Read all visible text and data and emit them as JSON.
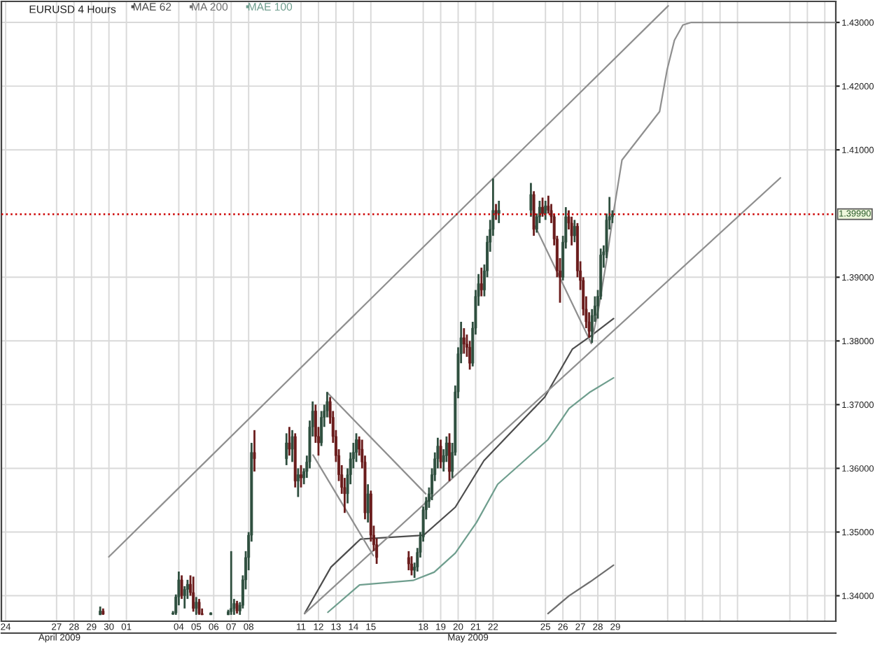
{
  "chart_data": {
    "type": "candlestick",
    "title": "EURUSD 4 Hours",
    "x": [
      "2009-04-30T00:00",
      "2009-04-30T04:00",
      "2009-05-04T04:00",
      "2009-05-04T08:00",
      "2009-05-04T12:00",
      "2009-05-04T16:00",
      "2009-05-04T20:00",
      "2009-05-05T00:00",
      "2009-05-05T04:00",
      "2009-05-05T08:00",
      "2009-05-05T12:00",
      "2009-05-05T16:00",
      "2009-05-05T20:00",
      "2009-05-06T08:00",
      "2009-05-07T08:00",
      "2009-05-07T12:00",
      "2009-05-07T16:00",
      "2009-05-07T20:00",
      "2009-05-08T00:00",
      "2009-05-08T04:00",
      "2009-05-08T08:00",
      "2009-05-08T12:00",
      "2009-05-08T16:00",
      "2009-05-08T20:00",
      "2009-05-10T16:00",
      "2009-05-10T20:00",
      "2009-05-11T00:00",
      "2009-05-11T04:00",
      "2009-05-11T08:00",
      "2009-05-11T12:00",
      "2009-05-11T16:00",
      "2009-05-11T20:00",
      "2009-05-12T00:00",
      "2009-05-12T04:00",
      "2009-05-12T08:00",
      "2009-05-12T12:00",
      "2009-05-12T16:00",
      "2009-05-12T20:00",
      "2009-05-13T00:00",
      "2009-05-13T04:00",
      "2009-05-13T08:00",
      "2009-05-13T12:00",
      "2009-05-13T16:00",
      "2009-05-13T20:00",
      "2009-05-14T00:00",
      "2009-05-14T04:00",
      "2009-05-14T08:00",
      "2009-05-14T12:00",
      "2009-05-14T16:00",
      "2009-05-14T20:00",
      "2009-05-15T00:00",
      "2009-05-15T04:00",
      "2009-05-15T08:00",
      "2009-05-15T12:00",
      "2009-05-15T16:00",
      "2009-05-15T20:00",
      "2009-05-17T16:00",
      "2009-05-17T20:00",
      "2009-05-18T00:00",
      "2009-05-18T04:00",
      "2009-05-18T08:00",
      "2009-05-18T12:00",
      "2009-05-18T16:00",
      "2009-05-18T20:00",
      "2009-05-19T00:00",
      "2009-05-19T04:00",
      "2009-05-19T08:00",
      "2009-05-19T12:00",
      "2009-05-19T16:00",
      "2009-05-19T20:00",
      "2009-05-20T00:00",
      "2009-05-20T04:00",
      "2009-05-20T08:00",
      "2009-05-20T12:00",
      "2009-05-20T16:00",
      "2009-05-20T20:00",
      "2009-05-21T00:00",
      "2009-05-21T04:00",
      "2009-05-21T08:00",
      "2009-05-21T12:00",
      "2009-05-21T16:00",
      "2009-05-21T20:00",
      "2009-05-22T00:00",
      "2009-05-22T04:00",
      "2009-05-22T08:00",
      "2009-05-22T12:00",
      "2009-05-22T16:00",
      "2009-05-22T20:00",
      "2009-05-24T16:00",
      "2009-05-24T20:00",
      "2009-05-25T00:00",
      "2009-05-25T04:00",
      "2009-05-25T08:00",
      "2009-05-25T12:00",
      "2009-05-25T16:00",
      "2009-05-25T20:00",
      "2009-05-26T00:00",
      "2009-05-26T04:00",
      "2009-05-26T08:00",
      "2009-05-26T12:00",
      "2009-05-26T16:00",
      "2009-05-26T20:00",
      "2009-05-27T00:00",
      "2009-05-27T04:00",
      "2009-05-27T08:00",
      "2009-05-27T12:00",
      "2009-05-27T16:00",
      "2009-05-27T20:00",
      "2009-05-28T00:00",
      "2009-05-28T04:00",
      "2009-05-28T08:00",
      "2009-05-28T12:00",
      "2009-05-28T16:00",
      "2009-05-28T20:00",
      "2009-05-29T00:00",
      "2009-05-29T04:00",
      "2009-05-29T08:00"
    ],
    "ohlc": [
      [
        1.337,
        1.3383,
        1.337,
        1.3376
      ],
      [
        1.3376,
        1.338,
        1.337,
        1.3371
      ],
      [
        1.3371,
        1.3376,
        1.337,
        1.3373
      ],
      [
        1.3373,
        1.3402,
        1.337,
        1.3398
      ],
      [
        1.3398,
        1.3438,
        1.3385,
        1.3425
      ],
      [
        1.3425,
        1.3432,
        1.3395,
        1.34
      ],
      [
        1.34,
        1.3415,
        1.338,
        1.341
      ],
      [
        1.341,
        1.3425,
        1.3395,
        1.3418
      ],
      [
        1.3418,
        1.3432,
        1.34,
        1.3405
      ],
      [
        1.3405,
        1.343,
        1.3375,
        1.338
      ],
      [
        1.338,
        1.3398,
        1.337,
        1.339
      ],
      [
        1.339,
        1.3395,
        1.337,
        1.3372
      ],
      [
        1.3372,
        1.338,
        1.337,
        1.337
      ],
      [
        1.337,
        1.3374,
        1.337,
        1.3373
      ],
      [
        1.337,
        1.3378,
        1.337,
        1.3375
      ],
      [
        1.3375,
        1.347,
        1.337,
        1.338
      ],
      [
        1.338,
        1.3395,
        1.337,
        1.3388
      ],
      [
        1.3388,
        1.3392,
        1.3372,
        1.3376
      ],
      [
        1.3376,
        1.339,
        1.337,
        1.3385
      ],
      [
        1.3385,
        1.3432,
        1.338,
        1.3425
      ],
      [
        1.3425,
        1.347,
        1.341,
        1.346
      ],
      [
        1.346,
        1.35,
        1.344,
        1.3495
      ],
      [
        1.3495,
        1.364,
        1.3485,
        1.3625
      ],
      [
        1.3625,
        1.366,
        1.3595,
        1.3615
      ],
      [
        1.3615,
        1.3655,
        1.3605,
        1.364
      ],
      [
        1.364,
        1.3665,
        1.362,
        1.363
      ],
      [
        1.363,
        1.366,
        1.361,
        1.365
      ],
      [
        1.365,
        1.3655,
        1.357,
        1.358
      ],
      [
        1.358,
        1.36,
        1.3555,
        1.359
      ],
      [
        1.359,
        1.3605,
        1.357,
        1.3585
      ],
      [
        1.3585,
        1.36,
        1.3575,
        1.3595
      ],
      [
        1.3595,
        1.362,
        1.3585,
        1.361
      ],
      [
        1.361,
        1.3675,
        1.36,
        1.3665
      ],
      [
        1.3665,
        1.3705,
        1.365,
        1.369
      ],
      [
        1.369,
        1.37,
        1.364,
        1.365
      ],
      [
        1.365,
        1.3665,
        1.362,
        1.364
      ],
      [
        1.364,
        1.369,
        1.3635,
        1.368
      ],
      [
        1.368,
        1.37,
        1.3665,
        1.369
      ],
      [
        1.369,
        1.372,
        1.368,
        1.3705
      ],
      [
        1.3705,
        1.3712,
        1.367,
        1.368
      ],
      [
        1.368,
        1.369,
        1.364,
        1.365
      ],
      [
        1.365,
        1.366,
        1.361,
        1.362
      ],
      [
        1.362,
        1.363,
        1.358,
        1.359
      ],
      [
        1.359,
        1.3605,
        1.356,
        1.357
      ],
      [
        1.357,
        1.3585,
        1.353,
        1.356
      ],
      [
        1.356,
        1.36,
        1.3545,
        1.359
      ],
      [
        1.359,
        1.3625,
        1.3575,
        1.3615
      ],
      [
        1.3615,
        1.364,
        1.36,
        1.3625
      ],
      [
        1.3625,
        1.3655,
        1.361,
        1.3645
      ],
      [
        1.3645,
        1.365,
        1.362,
        1.363
      ],
      [
        1.363,
        1.3645,
        1.36,
        1.361
      ],
      [
        1.361,
        1.362,
        1.352,
        1.353
      ],
      [
        1.353,
        1.3575,
        1.3515,
        1.356
      ],
      [
        1.356,
        1.3565,
        1.3485,
        1.3495
      ],
      [
        1.3495,
        1.351,
        1.347,
        1.348
      ],
      [
        1.348,
        1.349,
        1.345,
        1.346
      ],
      [
        1.346,
        1.347,
        1.344,
        1.345
      ],
      [
        1.345,
        1.3462,
        1.3432,
        1.344
      ],
      [
        1.344,
        1.3452,
        1.3428,
        1.3445
      ],
      [
        1.3445,
        1.3475,
        1.3438,
        1.3468
      ],
      [
        1.3468,
        1.35,
        1.346,
        1.3492
      ],
      [
        1.3492,
        1.354,
        1.3485,
        1.3535
      ],
      [
        1.3535,
        1.3555,
        1.352,
        1.3548
      ],
      [
        1.3548,
        1.357,
        1.3538,
        1.356
      ],
      [
        1.356,
        1.36,
        1.355,
        1.359
      ],
      [
        1.359,
        1.3625,
        1.358,
        1.3615
      ],
      [
        1.3615,
        1.3648,
        1.36,
        1.3635
      ],
      [
        1.3635,
        1.3645,
        1.36,
        1.361
      ],
      [
        1.361,
        1.363,
        1.3595,
        1.362
      ],
      [
        1.362,
        1.365,
        1.361,
        1.364
      ],
      [
        1.364,
        1.3655,
        1.358,
        1.3595
      ],
      [
        1.3595,
        1.364,
        1.3585,
        1.3625
      ],
      [
        1.3625,
        1.373,
        1.362,
        1.372
      ],
      [
        1.372,
        1.379,
        1.371,
        1.378
      ],
      [
        1.378,
        1.383,
        1.3765,
        1.3805
      ],
      [
        1.3805,
        1.382,
        1.378,
        1.3795
      ],
      [
        1.3795,
        1.381,
        1.3775,
        1.379
      ],
      [
        1.379,
        1.38,
        1.3755,
        1.3765
      ],
      [
        1.3765,
        1.383,
        1.376,
        1.382
      ],
      [
        1.382,
        1.388,
        1.381,
        1.387
      ],
      [
        1.387,
        1.3905,
        1.3855,
        1.389
      ],
      [
        1.389,
        1.3915,
        1.387,
        1.388
      ],
      [
        1.388,
        1.392,
        1.387,
        1.391
      ],
      [
        1.391,
        1.3965,
        1.39,
        1.3955
      ],
      [
        1.3955,
        1.399,
        1.394,
        1.3975
      ],
      [
        1.3975,
        1.4055,
        1.3965,
        1.4005
      ],
      [
        1.4005,
        1.4015,
        1.399,
        1.4
      ],
      [
        1.4,
        1.402,
        1.3985,
        1.4005
      ],
      [
        1.4005,
        1.4048,
        1.3995,
        1.403
      ],
      [
        1.403,
        1.4035,
        1.3965,
        1.3975
      ],
      [
        1.3975,
        1.4,
        1.397,
        1.3995
      ],
      [
        1.3995,
        1.402,
        1.3985,
        1.401
      ],
      [
        1.401,
        1.4025,
        1.3995,
        1.4
      ],
      [
        1.4,
        1.402,
        1.399,
        1.4012
      ],
      [
        1.4012,
        1.4028,
        1.4,
        1.4005
      ],
      [
        1.4005,
        1.4015,
        1.3985,
        1.3995
      ],
      [
        1.3995,
        1.4,
        1.395,
        1.396
      ],
      [
        1.396,
        1.3965,
        1.39,
        1.391
      ],
      [
        1.391,
        1.393,
        1.386,
        1.39
      ],
      [
        1.39,
        1.3965,
        1.3895,
        1.3955
      ],
      [
        1.3955,
        1.401,
        1.3945,
        1.3995
      ],
      [
        1.3995,
        1.4005,
        1.3975,
        1.3985
      ],
      [
        1.3985,
        1.3995,
        1.395,
        1.3965
      ],
      [
        1.3965,
        1.399,
        1.3955,
        1.398
      ],
      [
        1.398,
        1.3985,
        1.39,
        1.391
      ],
      [
        1.391,
        1.3925,
        1.388,
        1.3895
      ],
      [
        1.3895,
        1.39,
        1.384,
        1.385
      ],
      [
        1.385,
        1.387,
        1.382,
        1.383
      ],
      [
        1.383,
        1.3845,
        1.3805,
        1.3815
      ],
      [
        1.3815,
        1.385,
        1.3797,
        1.384
      ],
      [
        1.384,
        1.387,
        1.383,
        1.3855
      ],
      [
        1.3855,
        1.388,
        1.3835,
        1.387
      ],
      [
        1.387,
        1.3945,
        1.3865,
        1.3935
      ],
      [
        1.3935,
        1.395,
        1.3915,
        1.394
      ],
      [
        1.394,
        1.4,
        1.393,
        1.399
      ],
      [
        1.399,
        1.4026,
        1.3975,
        1.3995
      ],
      [
        1.3995,
        1.4005,
        1.3985,
        1.3999
      ]
    ],
    "colors": [
      "#2f4f3f",
      "#6a1c1c",
      "#2f4f3f",
      "#2f4f3f",
      "#2f4f3f",
      "#6a1c1c",
      "#2f4f3f",
      "#2f4f3f",
      "#6a1c1c",
      "#6a1c1c",
      "#2f4f3f",
      "#6a1c1c",
      "#6a1c1c",
      "#2f4f3f",
      "#2f4f3f",
      "#2f4f3f",
      "#2f4f3f",
      "#6a1c1c",
      "#2f4f3f",
      "#2f4f3f",
      "#2f4f3f",
      "#2f4f3f",
      "#2f4f3f",
      "#6a1c1c",
      "#2f4f3f",
      "#6a1c1c",
      "#2f4f3f",
      "#6a1c1c",
      "#2f4f3f",
      "#6a1c1c",
      "#2f4f3f",
      "#2f4f3f",
      "#2f4f3f",
      "#2f4f3f",
      "#6a1c1c",
      "#6a1c1c",
      "#2f4f3f",
      "#2f4f3f",
      "#2f4f3f",
      "#6a1c1c",
      "#6a1c1c",
      "#6a1c1c",
      "#6a1c1c",
      "#6a1c1c",
      "#6a1c1c",
      "#2f4f3f",
      "#2f4f3f",
      "#2f4f3f",
      "#2f4f3f",
      "#6a1c1c",
      "#6a1c1c",
      "#6a1c1c",
      "#2f4f3f",
      "#6a1c1c",
      "#6a1c1c",
      "#6a1c1c",
      "#6a1c1c",
      "#6a1c1c",
      "#2f4f3f",
      "#2f4f3f",
      "#2f4f3f",
      "#2f4f3f",
      "#2f4f3f",
      "#2f4f3f",
      "#2f4f3f",
      "#2f4f3f",
      "#2f4f3f",
      "#6a1c1c",
      "#2f4f3f",
      "#2f4f3f",
      "#6a1c1c",
      "#2f4f3f",
      "#2f4f3f",
      "#2f4f3f",
      "#2f4f3f",
      "#6a1c1c",
      "#6a1c1c",
      "#6a1c1c",
      "#2f4f3f",
      "#2f4f3f",
      "#2f4f3f",
      "#6a1c1c",
      "#2f4f3f",
      "#2f4f3f",
      "#2f4f3f",
      "#2f4f3f",
      "#6a1c1c",
      "#2f4f3f",
      "#2f4f3f",
      "#6a1c1c",
      "#2f4f3f",
      "#2f4f3f",
      "#6a1c1c",
      "#2f4f3f",
      "#6a1c1c",
      "#6a1c1c",
      "#6a1c1c",
      "#6a1c1c",
      "#6a1c1c",
      "#2f4f3f",
      "#2f4f3f",
      "#6a1c1c",
      "#6a1c1c",
      "#2f4f3f",
      "#6a1c1c",
      "#6a1c1c",
      "#6a1c1c",
      "#6a1c1c",
      "#6a1c1c",
      "#2f4f3f",
      "#2f4f3f",
      "#2f4f3f",
      "#2f4f3f",
      "#2f4f3f",
      "#2f4f3f",
      "#2f4f3f",
      "#2f4f3f"
    ],
    "series": [
      {
        "name": "MAE 62",
        "type": "line",
        "color": "#4d4d4d",
        "x": [
          "2009-05-11T16:54",
          "2009-05-13T05:12",
          "2009-05-14T21:54",
          "2009-05-18T12:30",
          "2009-05-20T08:06",
          "2009-05-21T23:24",
          "2009-05-25T11:06",
          "2009-05-27T00:54",
          "2009-05-28T01:36",
          "2009-05-29T09:36"
        ],
        "values": [
          1.3372,
          1.3445,
          1.3489,
          1.3495,
          1.3539,
          1.3612,
          1.3712,
          1.3787,
          1.3807,
          1.3835
        ]
      },
      {
        "name": "MA 200",
        "type": "line",
        "color": "#6e6e6e",
        "x": [
          "2009-05-25T15:24",
          "2009-05-26T20:30",
          "2009-05-28T01:36",
          "2009-05-29T09:36"
        ],
        "values": [
          1.3372,
          1.34,
          1.3422,
          1.3448
        ]
      },
      {
        "name": "MAE 100",
        "type": "line",
        "color": "#6f9e8e",
        "x": [
          "2009-05-13T00:54",
          "2009-05-14T20:30",
          "2009-05-17T22:00",
          "2009-05-19T03:06",
          "2009-05-20T08:06",
          "2009-05-21T13:12",
          "2009-05-22T18:18",
          "2009-05-25T15:24",
          "2009-05-26T20:30",
          "2009-05-28T01:36",
          "2009-05-29T09:36"
        ],
        "values": [
          1.3374,
          1.3417,
          1.3424,
          1.3437,
          1.3467,
          1.3515,
          1.3575,
          1.3645,
          1.3694,
          1.372,
          1.3742
        ]
      },
      {
        "type": "line",
        "color": "#8f8f8f",
        "x": [
          "2009-04-30T11:48",
          "2009-06-01T12:45"
        ],
        "values": [
          1.3461,
          1.4326
        ]
      },
      {
        "type": "line",
        "color": "#8f8f8f",
        "x": [
          "2009-05-11T16:54",
          "2009-06-07T23:00"
        ],
        "values": [
          1.3372,
          1.4056
        ]
      },
      {
        "type": "line",
        "color": "#8f8f8f",
        "x": [
          "2009-05-13T00:54",
          "2009-05-18T15:24"
        ],
        "values": [
          1.3718,
          1.356
        ]
      },
      {
        "type": "line",
        "color": "#8f8f8f",
        "x": [
          "2009-05-12T04:30",
          "2009-05-15T15:24"
        ],
        "values": [
          1.3621,
          1.3463
        ]
      },
      {
        "type": "line",
        "color": "#8f8f8f",
        "x": [
          "2009-05-24T21:58",
          "2009-05-28T03:06"
        ],
        "values": [
          1.398,
          1.3796
        ]
      },
      {
        "type": "line",
        "color": "#8f8f8f",
        "x": [
          "2009-05-28T03:06",
          "2009-05-28T13:12",
          "2009-05-28T23:24",
          "2009-05-29T09:36",
          "2009-05-29T21:12",
          "2009-06-01T00:54",
          "2009-06-01T11:06",
          "2009-06-01T21:18",
          "2009-06-02T08:54",
          "2009-06-02T20:30",
          "2009-06-11T03:06"
        ],
        "values": [
          1.3796,
          1.3852,
          1.3922,
          1.4002,
          1.4084,
          1.416,
          1.4225,
          1.4272,
          1.4296,
          1.43,
          1.43
        ]
      }
    ],
    "xlim": [
      "2009-04-24T08:10",
      "2009-06-11T03:06"
    ],
    "xticks": [
      {
        "value": "2009-04-24T14:00",
        "label": "24"
      },
      {
        "value": "2009-04-27T12:00",
        "label": "27"
      },
      {
        "value": "2009-04-28T12:00",
        "label": "28"
      },
      {
        "value": "2009-04-29T12:00",
        "label": "29"
      },
      {
        "value": "2009-04-30T12:00",
        "label": "30"
      },
      {
        "value": "2009-05-01T12:00",
        "label": "01"
      },
      {
        "value": "2009-05-04T12:00",
        "label": "04"
      },
      {
        "value": "2009-05-05T12:00",
        "label": "05"
      },
      {
        "value": "2009-05-06T12:00",
        "label": "06"
      },
      {
        "value": "2009-05-07T12:00",
        "label": "07"
      },
      {
        "value": "2009-05-08T12:00",
        "label": "08"
      },
      {
        "value": "2009-05-11T12:00",
        "label": "11"
      },
      {
        "value": "2009-05-12T12:00",
        "label": "12"
      },
      {
        "value": "2009-05-13T12:00",
        "label": "13"
      },
      {
        "value": "2009-05-14T12:00",
        "label": "14"
      },
      {
        "value": "2009-05-15T12:00",
        "label": "15"
      },
      {
        "value": "2009-05-18T12:00",
        "label": "18"
      },
      {
        "value": "2009-05-19T12:00",
        "label": "19"
      },
      {
        "value": "2009-05-20T12:00",
        "label": "20"
      },
      {
        "value": "2009-05-21T12:00",
        "label": "21"
      },
      {
        "value": "2009-05-22T12:00",
        "label": "22"
      },
      {
        "value": "2009-05-25T12:00",
        "label": "25"
      },
      {
        "value": "2009-05-26T12:00",
        "label": "26"
      },
      {
        "value": "2009-05-27T12:00",
        "label": "27"
      },
      {
        "value": "2009-05-28T12:00",
        "label": "28"
      },
      {
        "value": "2009-05-29T12:00",
        "label": "29"
      },
      {
        "value": "2009-06-01T12:00",
        "label": null
      },
      {
        "value": "2009-06-02T12:00",
        "label": null
      },
      {
        "value": "2009-06-03T12:00",
        "label": null
      },
      {
        "value": "2009-06-04T12:00",
        "label": null
      },
      {
        "value": "2009-06-05T12:00",
        "label": null
      },
      {
        "value": "2009-06-08T12:00",
        "label": null
      },
      {
        "value": "2009-06-09T12:00",
        "label": null
      },
      {
        "value": "2009-06-10T12:00",
        "label": null
      }
    ],
    "x2lim": [
      "2009-04-24T08:10",
      "2009-06-11T03:06"
    ],
    "x2ticks": [
      {
        "value": "2009-04-27T16:00",
        "label": "April 2009"
      },
      {
        "value": "2009-05-21T01:30",
        "label": "May 2009"
      }
    ],
    "ylim": [
      1.336,
      1.4333
    ],
    "yticks": [
      {
        "value": 1.34,
        "label": "1.34000"
      },
      {
        "value": 1.35,
        "label": "1.35000"
      },
      {
        "value": 1.36,
        "label": "1.36000"
      },
      {
        "value": 1.37,
        "label": "1.37000"
      },
      {
        "value": 1.38,
        "label": "1.38000"
      },
      {
        "value": 1.39,
        "label": "1.39000"
      },
      {
        "value": 1.41,
        "label": "1.41000"
      },
      {
        "value": 1.42,
        "label": "1.42000"
      },
      {
        "value": 1.43,
        "label": "1.43000"
      }
    ],
    "ref_lines": [
      {
        "axis": "y",
        "value": 1.3999,
        "label": "1.39990",
        "color": "#cc0000",
        "line_style": "dotted"
      }
    ],
    "grid": true,
    "legend": "top left"
  }
}
